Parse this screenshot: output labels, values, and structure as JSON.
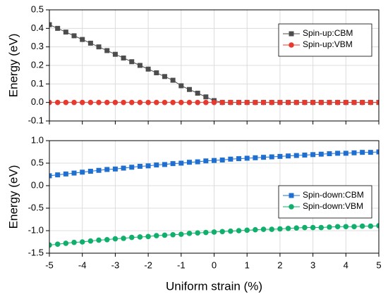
{
  "chart_data": [
    {
      "type": "line",
      "ylabel": "Energy (eV)",
      "x": [
        -5,
        -4.75,
        -4.5,
        -4.25,
        -4,
        -3.75,
        -3.5,
        -3.25,
        -3,
        -2.75,
        -2.5,
        -2.25,
        -2,
        -1.75,
        -1.5,
        -1.25,
        -1,
        -0.75,
        -0.5,
        -0.25,
        0,
        0.25,
        0.5,
        0.75,
        1,
        1.25,
        1.5,
        1.75,
        2,
        2.25,
        2.5,
        2.75,
        3,
        3.25,
        3.5,
        3.75,
        4,
        4.25,
        4.5,
        4.75,
        5
      ],
      "series": [
        {
          "name": "Spin-up:CBM",
          "color": "#4d4d4d",
          "marker": "square",
          "values": [
            0.42,
            0.4,
            0.38,
            0.36,
            0.34,
            0.32,
            0.3,
            0.28,
            0.26,
            0.24,
            0.22,
            0.2,
            0.18,
            0.16,
            0.14,
            0.12,
            0.09,
            0.07,
            0.05,
            0.03,
            0.01,
            0,
            0,
            0,
            0,
            0,
            0,
            0,
            0,
            0,
            0,
            0,
            0,
            0,
            0,
            0,
            0,
            0,
            0,
            0,
            0
          ]
        },
        {
          "name": "Spin-up:VBM",
          "color": "#e8392f",
          "marker": "circle",
          "values": [
            0,
            0,
            0,
            0,
            0,
            0,
            0,
            0,
            0,
            0,
            0,
            0,
            0,
            0,
            0,
            0,
            0,
            0,
            0,
            0,
            0,
            0,
            0,
            0,
            0,
            0,
            0,
            0,
            0,
            0,
            0,
            0,
            0,
            0,
            0,
            0,
            0,
            0,
            0,
            0,
            0
          ]
        }
      ],
      "xlim": [
        -5,
        5
      ],
      "xticks": [
        -5,
        -4,
        -3,
        -2,
        -1,
        0,
        1,
        2,
        3,
        4,
        5
      ],
      "ylim": [
        -0.1,
        0.5
      ],
      "yticks": [
        {
          "value": -0.1,
          "label": "-0.1"
        },
        {
          "value": 0,
          "label": "0.0"
        },
        0.1,
        0.2,
        0.3,
        0.4,
        0.5
      ],
      "grid": true,
      "legend": "upper right"
    },
    {
      "type": "line",
      "ylabel": "Energy (eV)",
      "xlabel": "Uniform strain (%)",
      "x": [
        -5,
        -4.75,
        -4.5,
        -4.25,
        -4,
        -3.75,
        -3.5,
        -3.25,
        -3,
        -2.75,
        -2.5,
        -2.25,
        -2,
        -1.75,
        -1.5,
        -1.25,
        -1,
        -0.75,
        -0.5,
        -0.25,
        0,
        0.25,
        0.5,
        0.75,
        1,
        1.25,
        1.5,
        1.75,
        2,
        2.25,
        2.5,
        2.75,
        3,
        3.25,
        3.5,
        3.75,
        4,
        4.25,
        4.5,
        4.75,
        5
      ],
      "series": [
        {
          "name": "Spin-down:CBM",
          "color": "#1f6fd1",
          "marker": "square",
          "values": [
            0.22,
            0.24,
            0.26,
            0.28,
            0.3,
            0.32,
            0.34,
            0.36,
            0.37,
            0.39,
            0.41,
            0.43,
            0.44,
            0.46,
            0.47,
            0.49,
            0.5,
            0.52,
            0.53,
            0.55,
            0.56,
            0.57,
            0.59,
            0.6,
            0.61,
            0.62,
            0.63,
            0.64,
            0.65,
            0.66,
            0.67,
            0.68,
            0.69,
            0.7,
            0.71,
            0.72,
            0.72,
            0.73,
            0.74,
            0.74,
            0.75
          ]
        },
        {
          "name": "Spin-down:VBM",
          "color": "#10b06c",
          "marker": "circle",
          "values": [
            -1.32,
            -1.3,
            -1.28,
            -1.26,
            -1.25,
            -1.23,
            -1.21,
            -1.2,
            -1.18,
            -1.17,
            -1.15,
            -1.14,
            -1.13,
            -1.11,
            -1.1,
            -1.09,
            -1.08,
            -1.06,
            -1.05,
            -1.04,
            -1.03,
            -1.02,
            -1.01,
            -1.0,
            -0.99,
            -0.98,
            -0.97,
            -0.97,
            -0.96,
            -0.95,
            -0.94,
            -0.93,
            -0.93,
            -0.93,
            -0.92,
            -0.91,
            -0.91,
            -0.91,
            -0.9,
            -0.9,
            -0.89
          ]
        }
      ],
      "xlim": [
        -5,
        5
      ],
      "xticks": [
        -5,
        -4,
        -3,
        -2,
        -1,
        0,
        1,
        2,
        3,
        4,
        5
      ],
      "ylim": [
        -1.5,
        1.0
      ],
      "yticks": [
        {
          "value": -1.5,
          "label": "-1.5"
        },
        {
          "value": -1,
          "label": "-1.0"
        },
        -0.5,
        {
          "value": 0,
          "label": "0.0"
        },
        0.5,
        {
          "value": 1,
          "label": "1.0"
        }
      ],
      "grid": true,
      "legend": "lower right"
    }
  ]
}
